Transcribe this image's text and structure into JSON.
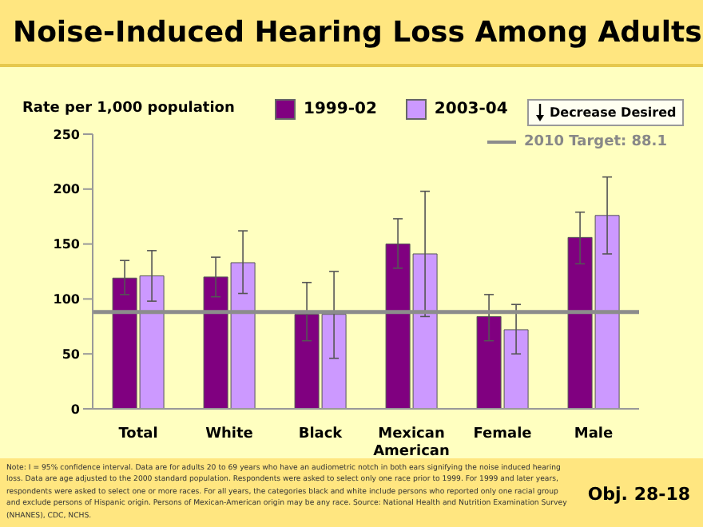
{
  "chart_data": {
    "type": "bar",
    "title": "Noise-Induced Hearing Loss Among Adults",
    "ylabel": "Rate per 1,000 population",
    "categories": [
      "Total",
      "White",
      "Black",
      "Mexican American",
      "Female",
      "Male"
    ],
    "series": [
      {
        "name": "1999-02",
        "color": "#800080",
        "values": [
          119,
          120,
          86,
          150,
          84,
          156
        ],
        "errors": [
          [
            104,
            135
          ],
          [
            102,
            138
          ],
          [
            62,
            115
          ],
          [
            128,
            173
          ],
          [
            62,
            104
          ],
          [
            132,
            179
          ]
        ]
      },
      {
        "name": "2003-04",
        "color": "#cc99ff",
        "values": [
          121,
          133,
          86,
          141,
          72,
          176
        ],
        "errors": [
          [
            98,
            144
          ],
          [
            105,
            162
          ],
          [
            46,
            125
          ],
          [
            84,
            198
          ],
          [
            50,
            95
          ],
          [
            141,
            211
          ]
        ]
      }
    ],
    "ylim": [
      0,
      250
    ],
    "yticks": [
      0,
      50,
      100,
      150,
      200,
      250
    ],
    "grid": false,
    "legend": "top",
    "ref_lines": [
      {
        "axis": "y",
        "value": 88.1,
        "label": "2010 Target: 88.1",
        "color": "#8c8c8c"
      }
    ],
    "annotations": [
      "Decrease Desired",
      "Note: I = 95% confidence interval. Data are for adults 20 to 69 years who have an audiometric notch in both ears signifying the noise induced hearing loss. Data are age adjusted to the 2000 standard population. Respondents were asked to select only one race prior to 1999. For 1999 and later years, respondents were asked to select one or more races.  For all years, the categories black and white include persons who reported only one racial group and exclude persons of Hispanic origin. Persons of Mexican-American origin may be any race. Source: National Health and Nutrition Examination Survey (NHANES), CDC, NCHS.",
      "Obj. 28-18"
    ]
  }
}
